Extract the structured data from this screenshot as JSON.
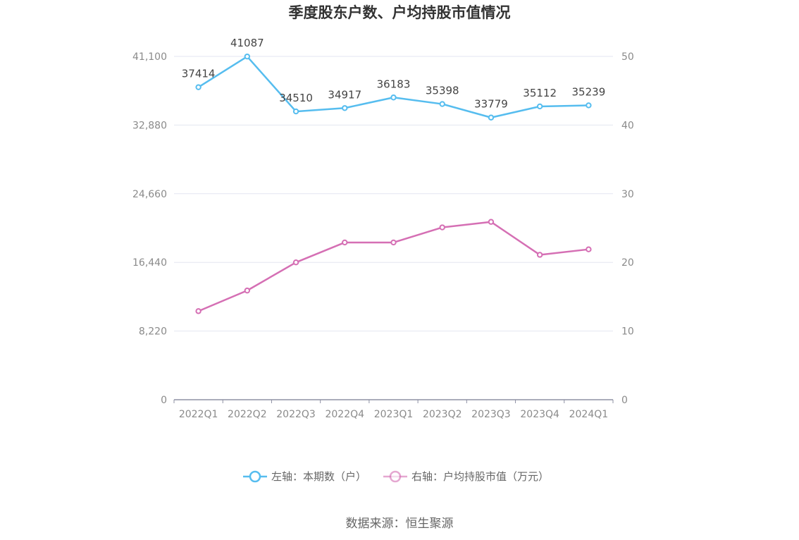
{
  "chart_data": {
    "type": "line",
    "title": "季度股东户数、户均持股市值情况",
    "categories": [
      "2022Q1",
      "2022Q2",
      "2022Q3",
      "2022Q4",
      "2023Q1",
      "2023Q2",
      "2023Q3",
      "2023Q4",
      "2024Q1"
    ],
    "y_left": {
      "ticks": [
        "0",
        "8,220",
        "16,440",
        "24,660",
        "32,880",
        "41,100"
      ],
      "ylim": [
        0,
        41100
      ]
    },
    "y_right": {
      "ticks": [
        "0",
        "10",
        "20",
        "30",
        "40",
        "50"
      ],
      "ylim": [
        0,
        50
      ]
    },
    "series": [
      {
        "name": "左轴：本期数（户）",
        "axis": "left",
        "color": "#56bdef",
        "values": [
          37414,
          41087,
          34510,
          34917,
          36183,
          35398,
          33779,
          35112,
          35239
        ],
        "labels": [
          "37414",
          "41087",
          "34510",
          "34917",
          "36183",
          "35398",
          "33779",
          "35112",
          "35239"
        ]
      },
      {
        "name": "右轴：户均持股市值（万元）",
        "axis": "right",
        "color": "#d56fb4",
        "values": [
          12.9,
          15.9,
          20.0,
          22.9,
          22.9,
          25.1,
          25.9,
          21.1,
          21.9
        ]
      }
    ],
    "grid": true,
    "legend_position": "bottom"
  },
  "source": "数据来源：恒生聚源"
}
